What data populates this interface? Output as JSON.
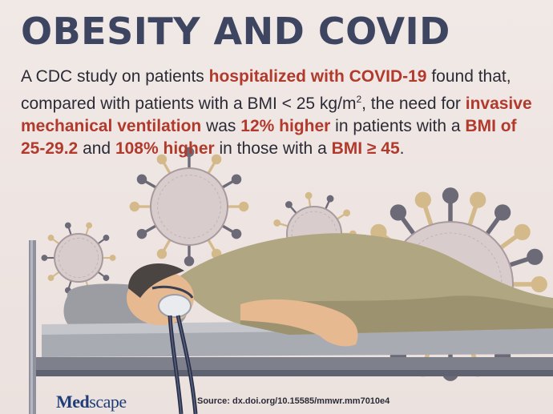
{
  "title": "OBESITY AND COVID",
  "paragraph": {
    "s1": "A CDC study on patients ",
    "h1": "hospitalized with COVID-19",
    "s2": " found that, compared with patients with a BMI < 25 kg/m",
    "sup": "2",
    "s3": ", the need for ",
    "h2": "invasive mechanical ventilation",
    "s4": " was ",
    "h3": "12% higher",
    "s5": " in patients with a ",
    "h4": "BMI of 25-29.2",
    "s6": " and ",
    "h5": "108% higher",
    "s7": " in those with a ",
    "h6": "BMI ≥ 45",
    "s8": "."
  },
  "logo": {
    "part1": "Med",
    "part2": "scape"
  },
  "source": "Source: dx.doi.org/10.15585/mmwr.mm7010e4",
  "colors": {
    "title": "#3e4560",
    "highlight": "#b13a2c",
    "background": "#efe6e3",
    "logo": "#1f3d78",
    "gown": "#b0a681",
    "virus_body": "#d9cccc",
    "spike_tan": "#d4b98a",
    "spike_gray": "#6d6a78"
  },
  "icons": [
    "virus-icon",
    "hospital-bed",
    "patient",
    "oxygen-mask",
    "ventilator-tube"
  ]
}
